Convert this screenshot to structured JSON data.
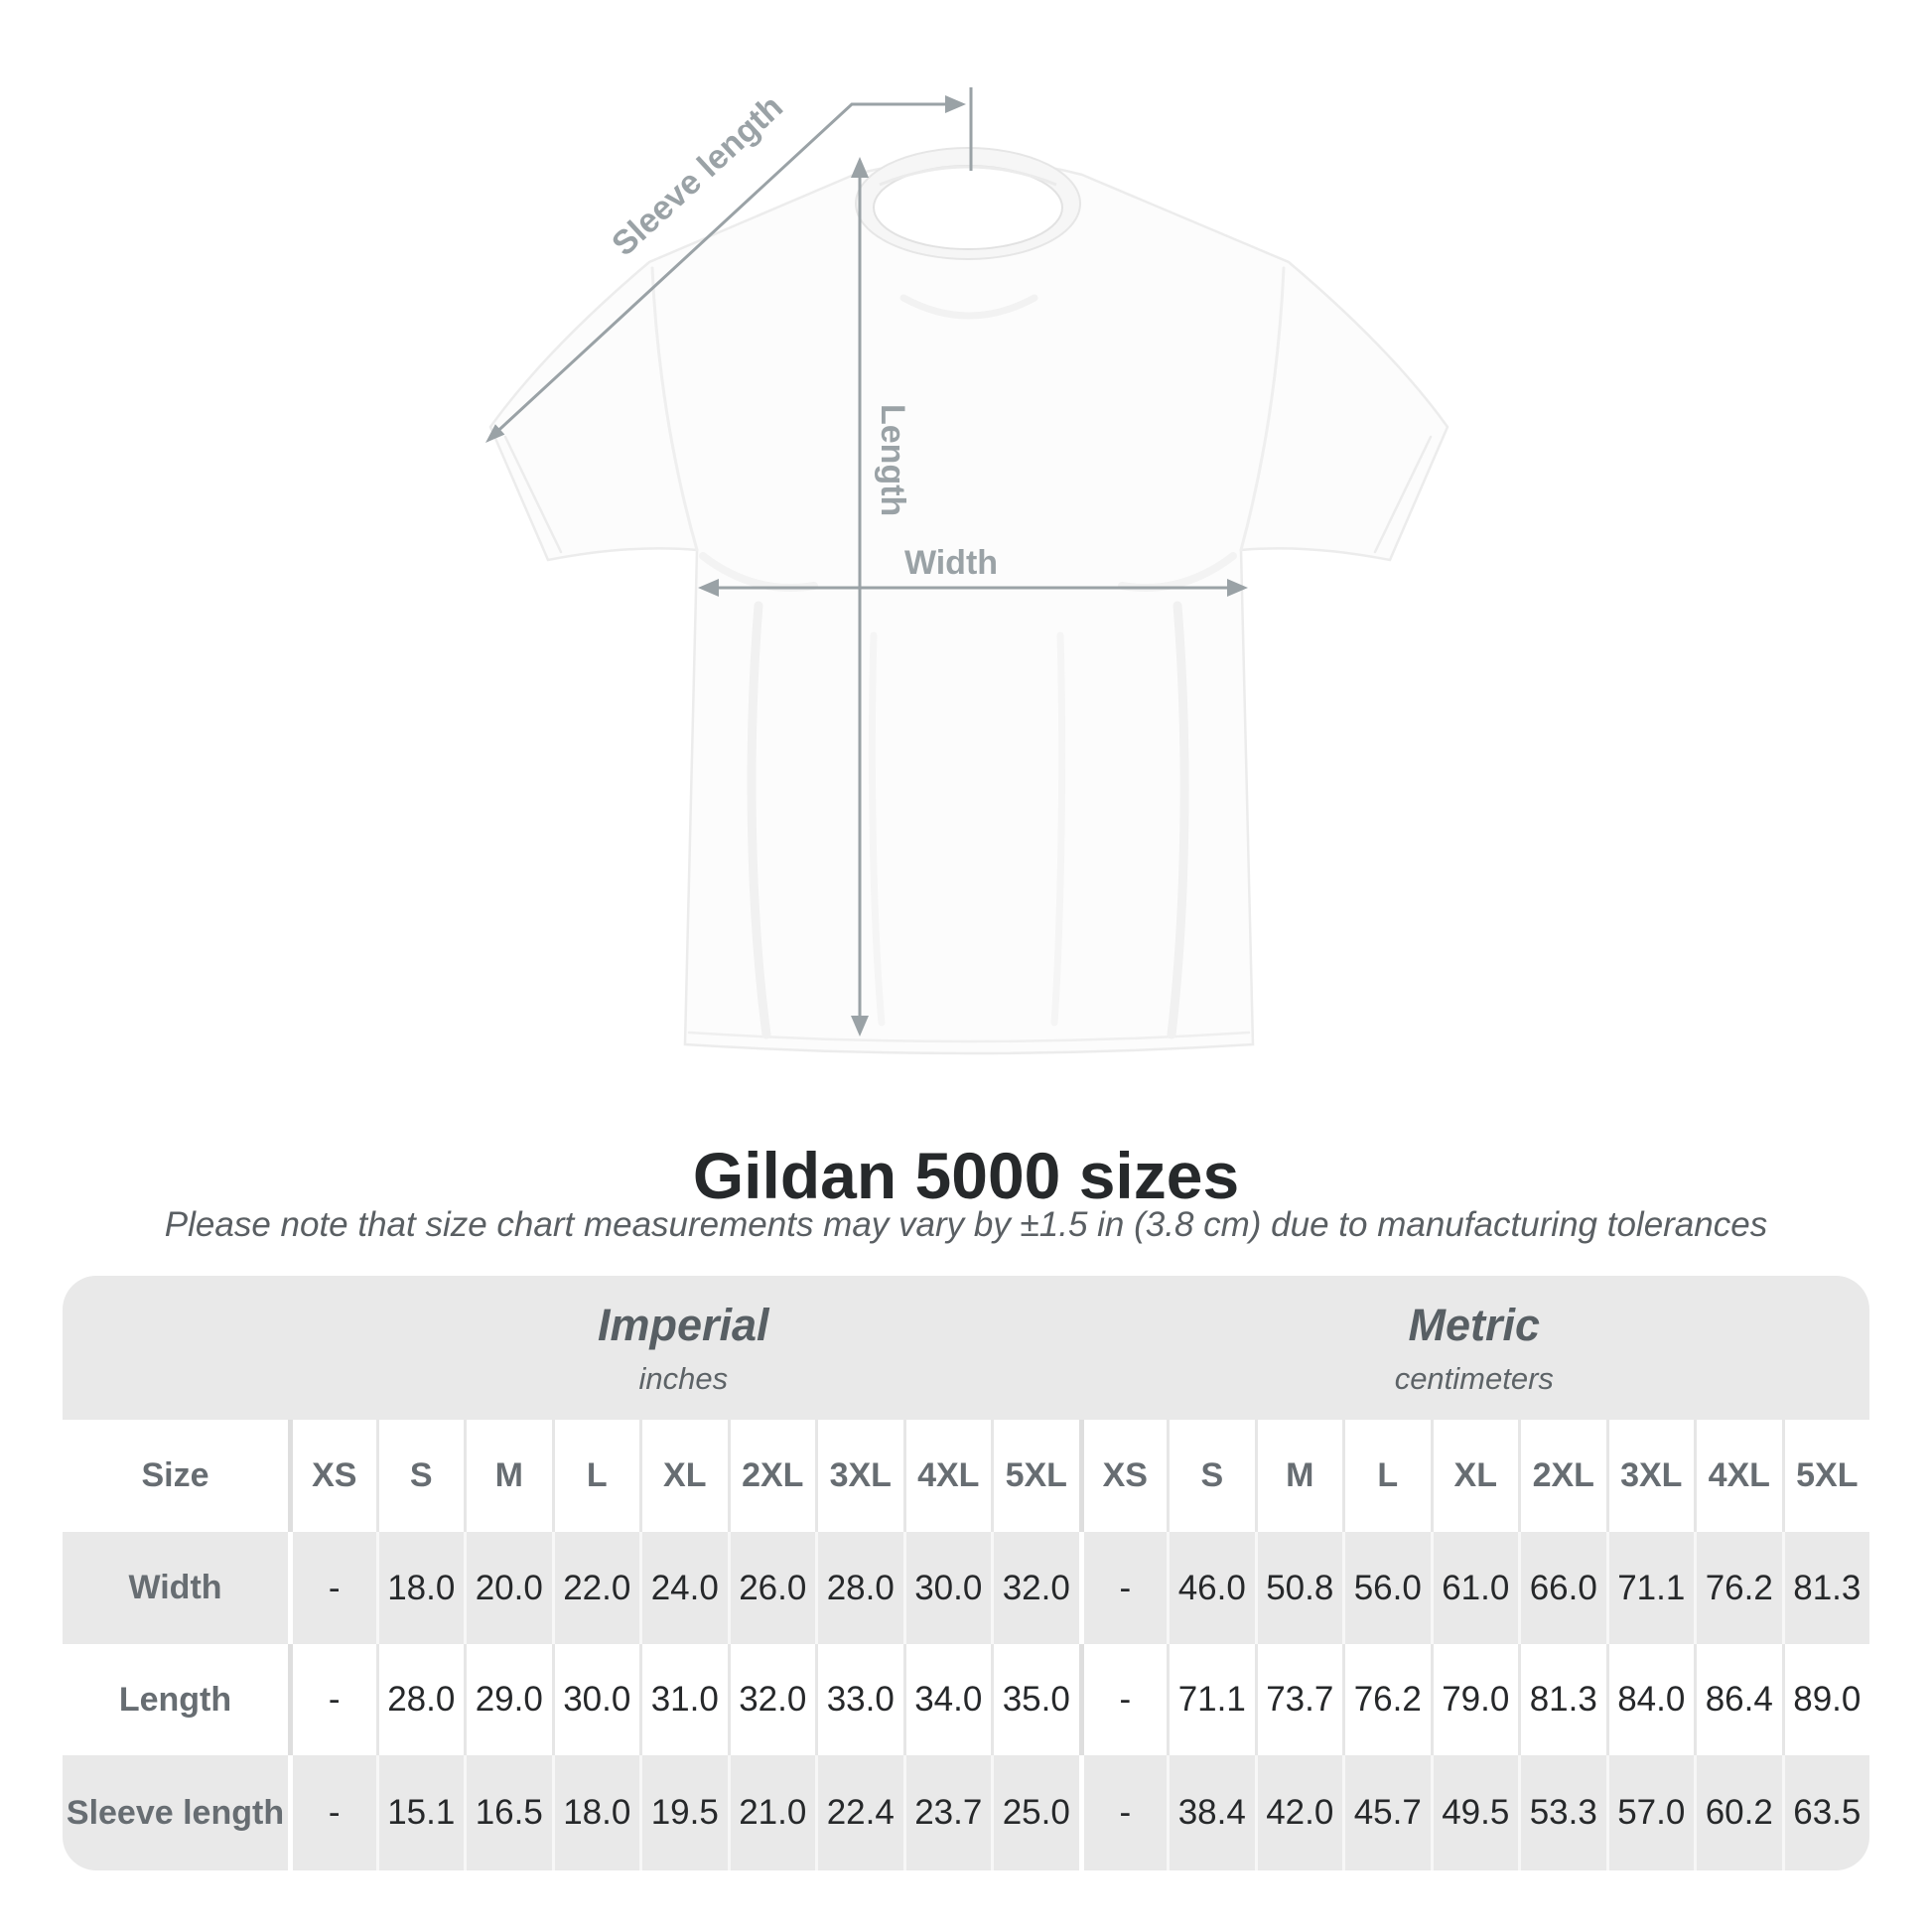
{
  "diagram": {
    "sleeve_length_label": "Sleeve length",
    "length_label": "Length",
    "width_label": "Width",
    "garment": "white crew-neck t-shirt",
    "annotation_color": "#9aa2a6"
  },
  "heading": {
    "title": "Gildan 5000 sizes",
    "subtitle": "Please note that size chart measurements may vary by ±1.5 in (3.8 cm) due to manufacturing tolerances"
  },
  "chart_data": {
    "type": "table",
    "title": "Gildan 5000 sizes",
    "size_column_header": "Size",
    "sections": [
      {
        "name": "Imperial",
        "unit": "inches"
      },
      {
        "name": "Metric",
        "unit": "centimeters"
      }
    ],
    "sizes": [
      "XS",
      "S",
      "M",
      "L",
      "XL",
      "2XL",
      "3XL",
      "4XL",
      "5XL"
    ],
    "rows": [
      {
        "label": "Width",
        "imperial": [
          "-",
          "18.0",
          "20.0",
          "22.0",
          "24.0",
          "26.0",
          "28.0",
          "30.0",
          "32.0"
        ],
        "metric": [
          "-",
          "46.0",
          "50.8",
          "56.0",
          "61.0",
          "66.0",
          "71.1",
          "76.2",
          "81.3"
        ]
      },
      {
        "label": "Length",
        "imperial": [
          "-",
          "28.0",
          "29.0",
          "30.0",
          "31.0",
          "32.0",
          "33.0",
          "34.0",
          "35.0"
        ],
        "metric": [
          "-",
          "71.1",
          "73.7",
          "76.2",
          "79.0",
          "81.3",
          "84.0",
          "86.4",
          "89.0"
        ]
      },
      {
        "label": "Sleeve length",
        "imperial": [
          "-",
          "15.1",
          "16.5",
          "18.0",
          "19.5",
          "21.0",
          "22.4",
          "23.7",
          "25.0"
        ],
        "metric": [
          "-",
          "38.4",
          "42.0",
          "45.7",
          "49.5",
          "53.3",
          "57.0",
          "60.2",
          "63.5"
        ]
      }
    ]
  },
  "colors": {
    "table_band": "#e9e9e9",
    "stripe_row": "#e9e9e9",
    "header_text": "#676d72",
    "value_text": "#26282a",
    "title_text": "#26292b",
    "subtitle_text": "#5a5f63",
    "annotation": "#9aa2a6"
  }
}
